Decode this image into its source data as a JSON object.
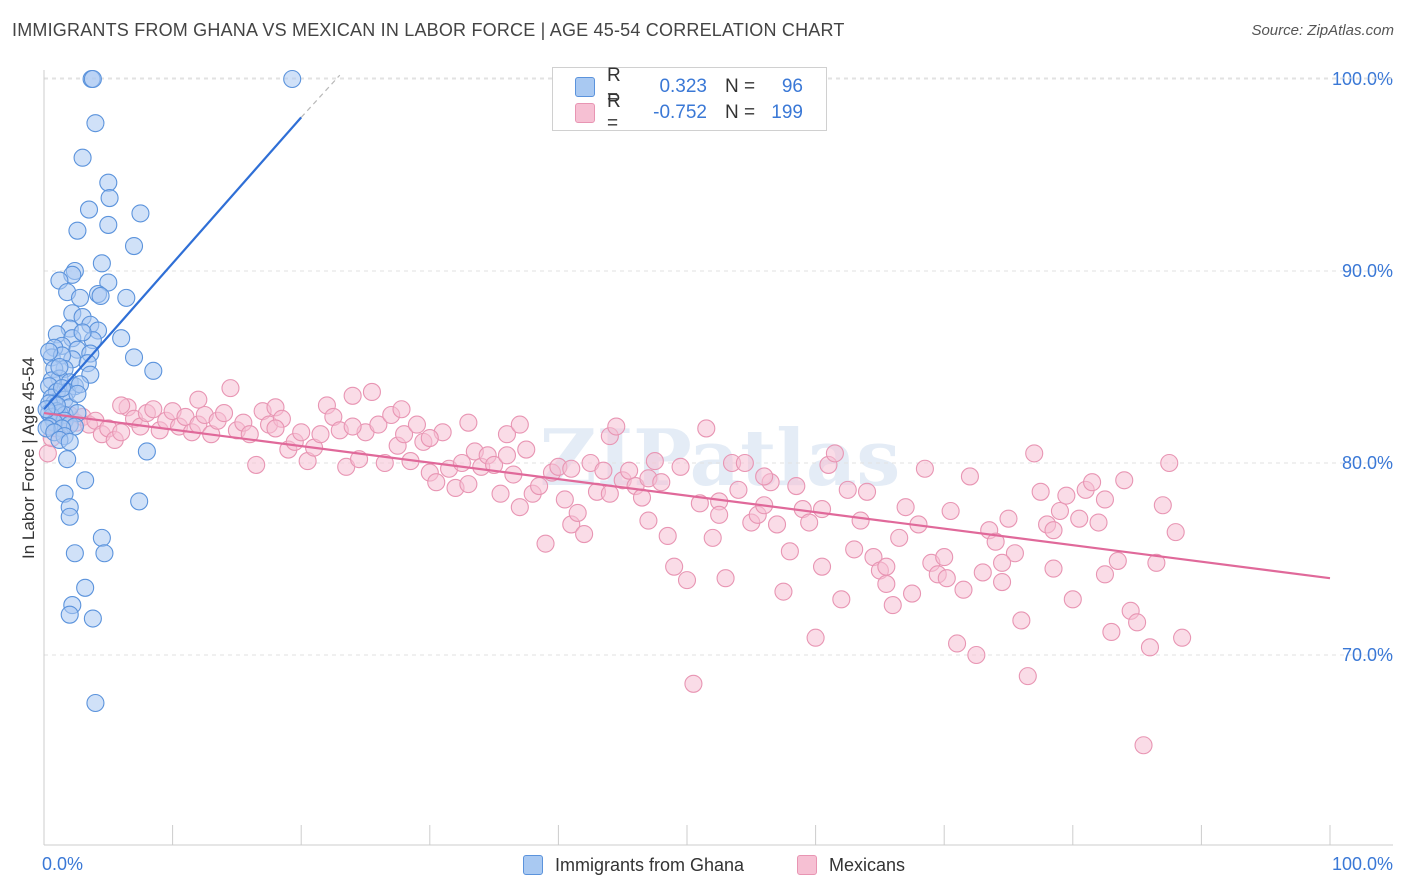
{
  "title": "IMMIGRANTS FROM GHANA VS MEXICAN IN LABOR FORCE | AGE 45-54 CORRELATION CHART",
  "source": "Source: ZipAtlas.com",
  "legend": {
    "rows": [
      {
        "r_label": "R =",
        "r_value": "0.323",
        "n_label": "N =",
        "n_value": "96"
      },
      {
        "r_label": "R =",
        "r_value": "-0.752",
        "n_label": "N =",
        "n_value": "199"
      }
    ]
  },
  "bottom_legend": [
    "Immigrants from Ghana",
    "Mexicans"
  ],
  "colors": {
    "blue_fill": "#a9c9f2",
    "blue_stroke": "#5b93dc",
    "blue_line": "#2f6fd6",
    "pink_fill": "#f6c0d3",
    "pink_stroke": "#e895b3",
    "pink_line": "#e0699a",
    "tick_label": "#3a78d6",
    "grid": "#e2e2e2"
  },
  "chart_data": {
    "type": "scatter",
    "title": "IMMIGRANTS FROM GHANA VS MEXICAN IN LABOR FORCE | AGE 45-54 CORRELATION CHART",
    "xlabel": "",
    "ylabel": "In Labor Force | Age 45-54",
    "xlim": [
      0,
      100
    ],
    "ylim": [
      60,
      101
    ],
    "x_tick_labels": [
      "0.0%",
      "100.0%"
    ],
    "y_ticks": [
      70,
      80,
      90,
      100
    ],
    "y_tick_labels": [
      "70.0%",
      "80.0%",
      "90.0%",
      "100.0%"
    ],
    "grid": "horizontal dashed",
    "watermark": "ZIPatlas",
    "series": [
      {
        "name": "Immigrants from Ghana",
        "r": 0.323,
        "n": 96,
        "trend": {
          "x0": 0,
          "y0": 82.8,
          "x1": 20,
          "y1": 98.0,
          "dashed_x1": 23,
          "dashed_y1": 100.2
        },
        "points": [
          [
            3.7,
            100
          ],
          [
            3.8,
            100
          ],
          [
            19.3,
            100
          ],
          [
            4.0,
            97.7
          ],
          [
            3.0,
            95.9
          ],
          [
            5.0,
            94.6
          ],
          [
            5.1,
            93.8
          ],
          [
            3.5,
            93.2
          ],
          [
            7.5,
            93.0
          ],
          [
            5.0,
            92.4
          ],
          [
            2.6,
            92.1
          ],
          [
            7.0,
            91.3
          ],
          [
            4.5,
            90.4
          ],
          [
            2.4,
            90.0
          ],
          [
            2.2,
            89.8
          ],
          [
            1.2,
            89.5
          ],
          [
            5.0,
            89.4
          ],
          [
            1.8,
            88.9
          ],
          [
            4.2,
            88.8
          ],
          [
            4.4,
            88.7
          ],
          [
            6.4,
            88.6
          ],
          [
            2.8,
            88.6
          ],
          [
            2.2,
            87.8
          ],
          [
            3.0,
            87.6
          ],
          [
            3.6,
            87.2
          ],
          [
            2.0,
            87.0
          ],
          [
            4.2,
            86.9
          ],
          [
            1.0,
            86.7
          ],
          [
            2.2,
            86.5
          ],
          [
            3.8,
            86.4
          ],
          [
            6.0,
            86.5
          ],
          [
            1.4,
            86.1
          ],
          [
            0.8,
            86.0
          ],
          [
            2.6,
            85.9
          ],
          [
            3.6,
            85.7
          ],
          [
            0.6,
            85.5
          ],
          [
            2.2,
            85.4
          ],
          [
            1.4,
            85.6
          ],
          [
            7.0,
            85.5
          ],
          [
            3.4,
            85.2
          ],
          [
            1.6,
            84.9
          ],
          [
            0.8,
            84.9
          ],
          [
            3.6,
            84.6
          ],
          [
            8.5,
            84.8
          ],
          [
            1.2,
            84.4
          ],
          [
            2.0,
            84.2
          ],
          [
            0.6,
            84.3
          ],
          [
            0.4,
            84.0
          ],
          [
            2.4,
            84.0
          ],
          [
            1.8,
            83.7
          ],
          [
            1.0,
            83.7
          ],
          [
            0.6,
            83.4
          ],
          [
            1.6,
            83.3
          ],
          [
            0.8,
            83.1
          ],
          [
            0.4,
            83.1
          ],
          [
            2.0,
            82.9
          ],
          [
            1.0,
            82.7
          ],
          [
            0.4,
            82.6
          ],
          [
            1.2,
            82.6
          ],
          [
            1.6,
            82.5
          ],
          [
            2.6,
            82.6
          ],
          [
            0.6,
            82.4
          ],
          [
            1.6,
            82.2
          ],
          [
            0.8,
            82.1
          ],
          [
            2.0,
            82.0
          ],
          [
            0.4,
            81.9
          ],
          [
            2.4,
            81.9
          ],
          [
            1.4,
            81.8
          ],
          [
            0.2,
            81.8
          ],
          [
            0.8,
            81.6
          ],
          [
            1.6,
            81.4
          ],
          [
            1.2,
            81.2
          ],
          [
            2.0,
            81.1
          ],
          [
            8.0,
            80.6
          ],
          [
            1.8,
            80.2
          ],
          [
            3.2,
            79.1
          ],
          [
            1.6,
            78.4
          ],
          [
            7.4,
            78.0
          ],
          [
            2.0,
            77.7
          ],
          [
            2.0,
            77.2
          ],
          [
            4.5,
            76.1
          ],
          [
            2.4,
            75.3
          ],
          [
            4.7,
            75.3
          ],
          [
            3.2,
            73.5
          ],
          [
            2.2,
            72.6
          ],
          [
            2.0,
            72.1
          ],
          [
            3.8,
            71.9
          ],
          [
            4.0,
            67.5
          ],
          [
            1.0,
            83.0
          ],
          [
            0.2,
            82.8
          ],
          [
            2.8,
            84.1
          ],
          [
            1.4,
            83.9
          ],
          [
            0.4,
            85.8
          ],
          [
            3.0,
            86.8
          ],
          [
            1.2,
            85.0
          ],
          [
            2.6,
            83.6
          ]
        ]
      },
      {
        "name": "Mexicans",
        "r": -0.752,
        "n": 199,
        "trend": {
          "x0": 0,
          "y0": 82.6,
          "x1": 100,
          "y1": 74.0
        },
        "points": [
          [
            0.3,
            80.5
          ],
          [
            0.6,
            81.3
          ],
          [
            1.0,
            81.8
          ],
          [
            1.5,
            82.0
          ],
          [
            2.0,
            82.5
          ],
          [
            2.5,
            82.1
          ],
          [
            3.0,
            82.4
          ],
          [
            3.5,
            82.0
          ],
          [
            4.0,
            82.2
          ],
          [
            4.5,
            81.5
          ],
          [
            5.0,
            81.8
          ],
          [
            5.5,
            81.2
          ],
          [
            6.0,
            81.6
          ],
          [
            6.5,
            82.9
          ],
          [
            7.0,
            82.3
          ],
          [
            7.5,
            81.9
          ],
          [
            8.0,
            82.6
          ],
          [
            8.5,
            82.8
          ],
          [
            9.0,
            81.7
          ],
          [
            9.5,
            82.2
          ],
          [
            10.0,
            82.7
          ],
          [
            10.5,
            81.9
          ],
          [
            11.0,
            82.4
          ],
          [
            11.5,
            81.6
          ],
          [
            12.0,
            82.0
          ],
          [
            12.5,
            82.5
          ],
          [
            13.0,
            81.5
          ],
          [
            13.5,
            82.2
          ],
          [
            14.0,
            82.6
          ],
          [
            14.5,
            83.9
          ],
          [
            15.0,
            81.7
          ],
          [
            15.5,
            82.1
          ],
          [
            16.0,
            81.5
          ],
          [
            16.5,
            79.9
          ],
          [
            17.0,
            82.7
          ],
          [
            17.5,
            82.0
          ],
          [
            18.0,
            82.9
          ],
          [
            18.5,
            82.3
          ],
          [
            19.0,
            80.7
          ],
          [
            19.5,
            81.1
          ],
          [
            20.0,
            81.6
          ],
          [
            20.5,
            80.1
          ],
          [
            21.0,
            80.8
          ],
          [
            21.5,
            81.5
          ],
          [
            22.0,
            83.0
          ],
          [
            22.5,
            82.4
          ],
          [
            23.0,
            81.7
          ],
          [
            23.5,
            79.8
          ],
          [
            24.0,
            83.5
          ],
          [
            24.5,
            80.2
          ],
          [
            25.0,
            81.6
          ],
          [
            25.5,
            83.7
          ],
          [
            26.0,
            82.0
          ],
          [
            26.5,
            80.0
          ],
          [
            27.0,
            82.5
          ],
          [
            27.5,
            80.9
          ],
          [
            28.0,
            81.5
          ],
          [
            28.5,
            80.1
          ],
          [
            29.0,
            82.0
          ],
          [
            29.5,
            81.1
          ],
          [
            30.0,
            79.5
          ],
          [
            30.5,
            79.0
          ],
          [
            31.0,
            81.6
          ],
          [
            31.5,
            79.7
          ],
          [
            32.0,
            78.7
          ],
          [
            32.5,
            80.0
          ],
          [
            33.0,
            78.9
          ],
          [
            33.5,
            80.6
          ],
          [
            34.0,
            79.8
          ],
          [
            34.5,
            80.4
          ],
          [
            35.0,
            79.9
          ],
          [
            35.5,
            78.4
          ],
          [
            36.0,
            81.5
          ],
          [
            36.5,
            79.4
          ],
          [
            37.0,
            77.7
          ],
          [
            37.5,
            80.7
          ],
          [
            38.0,
            78.4
          ],
          [
            38.5,
            78.8
          ],
          [
            39.0,
            75.8
          ],
          [
            39.5,
            79.5
          ],
          [
            40.0,
            79.8
          ],
          [
            40.5,
            78.1
          ],
          [
            41.0,
            76.8
          ],
          [
            41.5,
            77.4
          ],
          [
            42.0,
            76.3
          ],
          [
            42.5,
            80.0
          ],
          [
            43.0,
            78.5
          ],
          [
            43.5,
            79.6
          ],
          [
            44.0,
            81.4
          ],
          [
            44.5,
            81.9
          ],
          [
            45.0,
            79.1
          ],
          [
            45.5,
            79.6
          ],
          [
            46.0,
            78.8
          ],
          [
            46.5,
            78.2
          ],
          [
            47.0,
            79.2
          ],
          [
            47.5,
            80.1
          ],
          [
            48.0,
            79.0
          ],
          [
            48.5,
            76.2
          ],
          [
            49.0,
            74.6
          ],
          [
            49.5,
            79.8
          ],
          [
            50.0,
            73.9
          ],
          [
            50.5,
            68.5
          ],
          [
            51.0,
            77.9
          ],
          [
            51.5,
            81.8
          ],
          [
            52.0,
            76.1
          ],
          [
            52.5,
            78.0
          ],
          [
            53.0,
            74.0
          ],
          [
            53.5,
            80.0
          ],
          [
            54.0,
            78.6
          ],
          [
            54.5,
            80.0
          ],
          [
            55.0,
            76.9
          ],
          [
            55.5,
            77.3
          ],
          [
            56.0,
            77.8
          ],
          [
            56.5,
            79.0
          ],
          [
            57.0,
            76.8
          ],
          [
            57.5,
            73.3
          ],
          [
            58.0,
            75.4
          ],
          [
            58.5,
            78.8
          ],
          [
            59.0,
            77.6
          ],
          [
            59.5,
            76.9
          ],
          [
            60.0,
            70.9
          ],
          [
            60.5,
            74.6
          ],
          [
            61.0,
            79.9
          ],
          [
            61.5,
            80.5
          ],
          [
            62.0,
            72.9
          ],
          [
            62.5,
            78.6
          ],
          [
            63.0,
            75.5
          ],
          [
            63.5,
            77.0
          ],
          [
            64.0,
            78.5
          ],
          [
            64.5,
            75.1
          ],
          [
            65.0,
            74.4
          ],
          [
            65.5,
            73.7
          ],
          [
            66.0,
            72.6
          ],
          [
            66.5,
            76.1
          ],
          [
            67.0,
            77.7
          ],
          [
            67.5,
            73.2
          ],
          [
            68.0,
            76.8
          ],
          [
            68.5,
            79.7
          ],
          [
            69.0,
            74.8
          ],
          [
            69.5,
            74.2
          ],
          [
            70.0,
            75.1
          ],
          [
            70.5,
            77.5
          ],
          [
            71.0,
            70.6
          ],
          [
            71.5,
            73.4
          ],
          [
            72.0,
            79.3
          ],
          [
            72.5,
            70.0
          ],
          [
            73.0,
            74.3
          ],
          [
            73.5,
            76.5
          ],
          [
            74.0,
            75.9
          ],
          [
            74.5,
            73.8
          ],
          [
            75.0,
            77.1
          ],
          [
            75.5,
            75.3
          ],
          [
            76.0,
            71.8
          ],
          [
            76.5,
            68.9
          ],
          [
            77.0,
            80.5
          ],
          [
            77.5,
            78.5
          ],
          [
            78.0,
            76.8
          ],
          [
            78.5,
            74.5
          ],
          [
            79.0,
            77.5
          ],
          [
            79.5,
            78.3
          ],
          [
            80.0,
            72.9
          ],
          [
            80.5,
            77.1
          ],
          [
            81.0,
            78.6
          ],
          [
            81.5,
            79.0
          ],
          [
            82.0,
            76.9
          ],
          [
            82.5,
            78.1
          ],
          [
            83.0,
            71.2
          ],
          [
            83.5,
            74.9
          ],
          [
            84.0,
            79.1
          ],
          [
            84.5,
            72.3
          ],
          [
            85.0,
            71.7
          ],
          [
            85.5,
            65.3
          ],
          [
            86.0,
            70.4
          ],
          [
            86.5,
            74.8
          ],
          [
            87.0,
            77.8
          ],
          [
            87.5,
            80.0
          ],
          [
            88.0,
            76.4
          ],
          [
            88.5,
            70.9
          ],
          [
            27.8,
            82.8
          ],
          [
            33.0,
            82.1
          ],
          [
            37.0,
            82.0
          ],
          [
            41.0,
            79.7
          ],
          [
            44.0,
            78.4
          ],
          [
            47.0,
            77.0
          ],
          [
            52.5,
            77.3
          ],
          [
            56.0,
            79.3
          ],
          [
            60.5,
            77.6
          ],
          [
            65.5,
            74.6
          ],
          [
            70.2,
            74.0
          ],
          [
            74.5,
            74.8
          ],
          [
            78.5,
            76.5
          ],
          [
            82.5,
            74.2
          ],
          [
            6.0,
            83.0
          ],
          [
            12.0,
            83.3
          ],
          [
            18.0,
            81.8
          ],
          [
            24.0,
            81.9
          ],
          [
            30.0,
            81.3
          ],
          [
            36.0,
            80.4
          ]
        ]
      }
    ]
  }
}
